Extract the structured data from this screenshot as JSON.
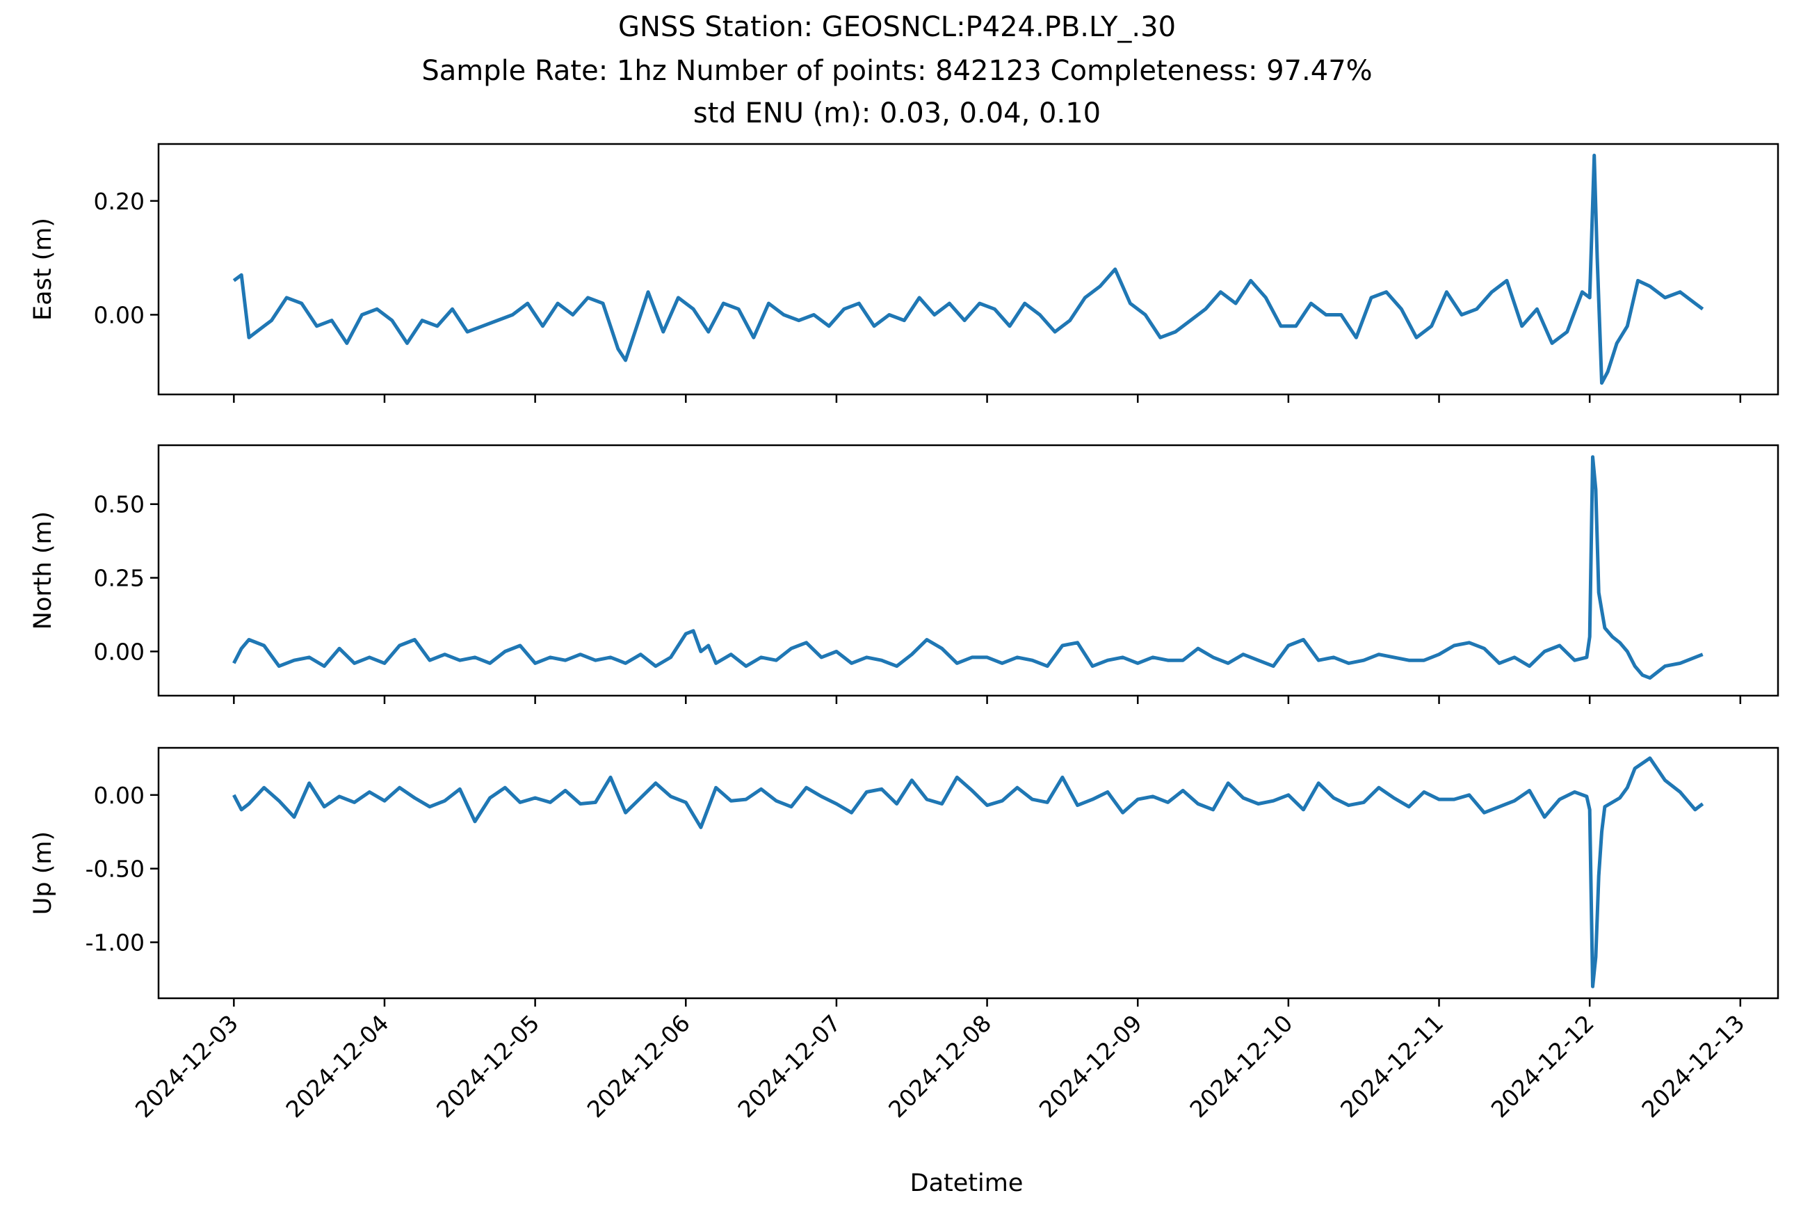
{
  "chart_data": {
    "type": "line",
    "title_lines": [
      "GNSS Station: GEOSNCL:P424.PB.LY_.30",
      "Sample Rate: 1hz   Number of points: 842123    Completeness:  97.47%",
      "std ENU (m):  0.03, 0.04, 0.10"
    ],
    "xlabel": "Datetime",
    "x_ticks": [
      "2024-12-03",
      "2024-12-04",
      "2024-12-05",
      "2024-12-06",
      "2024-12-07",
      "2024-12-08",
      "2024-12-09",
      "2024-12-10",
      "2024-12-11",
      "2024-12-12",
      "2024-12-13"
    ],
    "x_range_days": [
      -0.5,
      10.25
    ],
    "line_color": "#1f77b4",
    "panels": [
      {
        "ylabel": "East (m)",
        "ylim": [
          -0.14,
          0.3
        ],
        "yticks": [
          0.0,
          0.2
        ],
        "ytick_labels": [
          "0.00",
          "0.20"
        ],
        "series": {
          "x_days": [
            0.0,
            0.05,
            0.1,
            0.15,
            0.25,
            0.35,
            0.45,
            0.55,
            0.65,
            0.75,
            0.85,
            0.95,
            1.05,
            1.15,
            1.25,
            1.35,
            1.45,
            1.55,
            1.65,
            1.75,
            1.85,
            1.95,
            2.05,
            2.15,
            2.25,
            2.35,
            2.45,
            2.55,
            2.6,
            2.7,
            2.75,
            2.85,
            2.95,
            3.05,
            3.15,
            3.25,
            3.35,
            3.45,
            3.55,
            3.65,
            3.75,
            3.85,
            3.95,
            4.05,
            4.15,
            4.25,
            4.35,
            4.45,
            4.55,
            4.65,
            4.75,
            4.85,
            4.95,
            5.05,
            5.15,
            5.25,
            5.35,
            5.45,
            5.55,
            5.65,
            5.75,
            5.85,
            5.95,
            6.05,
            6.15,
            6.25,
            6.35,
            6.45,
            6.55,
            6.65,
            6.75,
            6.85,
            6.95,
            7.05,
            7.15,
            7.25,
            7.35,
            7.45,
            7.55,
            7.65,
            7.75,
            7.85,
            7.95,
            8.05,
            8.15,
            8.25,
            8.35,
            8.45,
            8.55,
            8.65,
            8.75,
            8.85,
            8.95,
            9.0,
            9.03,
            9.05,
            9.08,
            9.12,
            9.18,
            9.25,
            9.32,
            9.4,
            9.5,
            9.6,
            9.7,
            9.75
          ],
          "y": [
            0.06,
            0.07,
            -0.04,
            -0.03,
            -0.01,
            0.03,
            0.02,
            -0.02,
            -0.01,
            -0.05,
            0.0,
            0.01,
            -0.01,
            -0.05,
            -0.01,
            -0.02,
            0.01,
            -0.03,
            -0.02,
            -0.01,
            0.0,
            0.02,
            -0.02,
            0.02,
            0.0,
            0.03,
            0.02,
            -0.06,
            -0.08,
            0.0,
            0.04,
            -0.03,
            0.03,
            0.01,
            -0.03,
            0.02,
            0.01,
            -0.04,
            0.02,
            0.0,
            -0.01,
            0.0,
            -0.02,
            0.01,
            0.02,
            -0.02,
            0.0,
            -0.01,
            0.03,
            0.0,
            0.02,
            -0.01,
            0.02,
            0.01,
            -0.02,
            0.02,
            0.0,
            -0.03,
            -0.01,
            0.03,
            0.05,
            0.08,
            0.02,
            0.0,
            -0.04,
            -0.03,
            -0.01,
            0.01,
            0.04,
            0.02,
            0.06,
            0.03,
            -0.02,
            -0.02,
            0.02,
            0.0,
            0.0,
            -0.04,
            0.03,
            0.04,
            0.01,
            -0.04,
            -0.02,
            0.04,
            0.0,
            0.01,
            0.04,
            0.06,
            -0.02,
            0.01,
            -0.05,
            -0.03,
            0.04,
            0.03,
            0.28,
            0.1,
            -0.12,
            -0.1,
            -0.05,
            -0.02,
            0.06,
            0.05,
            0.03,
            0.04,
            0.02,
            0.01
          ]
        }
      },
      {
        "ylabel": "North (m)",
        "ylim": [
          -0.15,
          0.7
        ],
        "yticks": [
          0.0,
          0.25,
          0.5
        ],
        "ytick_labels": [
          "0.00",
          "0.25",
          "0.50"
        ],
        "series": {
          "x_days": [
            0.0,
            0.05,
            0.1,
            0.2,
            0.3,
            0.4,
            0.5,
            0.6,
            0.7,
            0.8,
            0.9,
            1.0,
            1.1,
            1.2,
            1.3,
            1.4,
            1.5,
            1.6,
            1.7,
            1.8,
            1.9,
            2.0,
            2.1,
            2.2,
            2.3,
            2.4,
            2.5,
            2.6,
            2.7,
            2.8,
            2.9,
            3.0,
            3.05,
            3.1,
            3.15,
            3.2,
            3.3,
            3.4,
            3.5,
            3.6,
            3.7,
            3.8,
            3.9,
            4.0,
            4.1,
            4.2,
            4.3,
            4.4,
            4.5,
            4.6,
            4.7,
            4.8,
            4.9,
            5.0,
            5.1,
            5.2,
            5.3,
            5.4,
            5.5,
            5.6,
            5.7,
            5.8,
            5.9,
            6.0,
            6.1,
            6.2,
            6.3,
            6.4,
            6.5,
            6.6,
            6.7,
            6.8,
            6.9,
            7.0,
            7.1,
            7.2,
            7.3,
            7.4,
            7.5,
            7.6,
            7.7,
            7.8,
            7.9,
            8.0,
            8.1,
            8.2,
            8.3,
            8.4,
            8.5,
            8.6,
            8.7,
            8.8,
            8.9,
            8.98,
            9.0,
            9.02,
            9.04,
            9.06,
            9.08,
            9.1,
            9.15,
            9.2,
            9.25,
            9.3,
            9.35,
            9.4,
            9.5,
            9.6,
            9.7,
            9.75
          ],
          "y": [
            -0.04,
            0.01,
            0.04,
            0.02,
            -0.05,
            -0.03,
            -0.02,
            -0.05,
            0.01,
            -0.04,
            -0.02,
            -0.04,
            0.02,
            0.04,
            -0.03,
            -0.01,
            -0.03,
            -0.02,
            -0.04,
            0.0,
            0.02,
            -0.04,
            -0.02,
            -0.03,
            -0.01,
            -0.03,
            -0.02,
            -0.04,
            -0.01,
            -0.05,
            -0.02,
            0.06,
            0.07,
            0.0,
            0.02,
            -0.04,
            -0.01,
            -0.05,
            -0.02,
            -0.03,
            0.01,
            0.03,
            -0.02,
            0.0,
            -0.04,
            -0.02,
            -0.03,
            -0.05,
            -0.01,
            0.04,
            0.01,
            -0.04,
            -0.02,
            -0.02,
            -0.04,
            -0.02,
            -0.03,
            -0.05,
            0.02,
            0.03,
            -0.05,
            -0.03,
            -0.02,
            -0.04,
            -0.02,
            -0.03,
            -0.03,
            0.01,
            -0.02,
            -0.04,
            -0.01,
            -0.03,
            -0.05,
            0.02,
            0.04,
            -0.03,
            -0.02,
            -0.04,
            -0.03,
            -0.01,
            -0.02,
            -0.03,
            -0.03,
            -0.01,
            0.02,
            0.03,
            0.01,
            -0.04,
            -0.02,
            -0.05,
            0.0,
            0.02,
            -0.03,
            -0.02,
            0.05,
            0.66,
            0.55,
            0.2,
            0.14,
            0.08,
            0.05,
            0.03,
            0.0,
            -0.05,
            -0.08,
            -0.09,
            -0.05,
            -0.04,
            -0.02,
            -0.01
          ]
        }
      },
      {
        "ylabel": "Up (m)",
        "ylim": [
          -1.38,
          0.32
        ],
        "yticks": [
          -1.0,
          -0.5,
          0.0
        ],
        "ytick_labels": [
          "-1.00",
          "-0.50",
          "0.00"
        ],
        "series": {
          "x_days": [
            0.0,
            0.05,
            0.1,
            0.2,
            0.3,
            0.4,
            0.5,
            0.6,
            0.7,
            0.8,
            0.9,
            1.0,
            1.1,
            1.2,
            1.3,
            1.4,
            1.5,
            1.6,
            1.7,
            1.8,
            1.9,
            2.0,
            2.1,
            2.2,
            2.3,
            2.4,
            2.5,
            2.6,
            2.7,
            2.8,
            2.9,
            3.0,
            3.1,
            3.2,
            3.3,
            3.4,
            3.5,
            3.6,
            3.7,
            3.8,
            3.9,
            4.0,
            4.1,
            4.2,
            4.3,
            4.4,
            4.5,
            4.6,
            4.7,
            4.8,
            4.9,
            5.0,
            5.1,
            5.2,
            5.3,
            5.4,
            5.5,
            5.6,
            5.7,
            5.8,
            5.9,
            6.0,
            6.1,
            6.2,
            6.3,
            6.4,
            6.5,
            6.6,
            6.7,
            6.8,
            6.9,
            7.0,
            7.1,
            7.2,
            7.3,
            7.4,
            7.5,
            7.6,
            7.7,
            7.8,
            7.9,
            8.0,
            8.1,
            8.2,
            8.3,
            8.4,
            8.5,
            8.6,
            8.7,
            8.8,
            8.9,
            8.98,
            9.0,
            9.02,
            9.04,
            9.06,
            9.08,
            9.1,
            9.15,
            9.2,
            9.25,
            9.3,
            9.4,
            9.5,
            9.6,
            9.7,
            9.75
          ],
          "y": [
            0.0,
            -0.1,
            -0.06,
            0.05,
            -0.04,
            -0.15,
            0.08,
            -0.08,
            -0.01,
            -0.05,
            0.02,
            -0.04,
            0.05,
            -0.02,
            -0.08,
            -0.04,
            0.04,
            -0.18,
            -0.02,
            0.05,
            -0.05,
            -0.02,
            -0.05,
            0.03,
            -0.06,
            -0.05,
            0.12,
            -0.12,
            -0.02,
            0.08,
            -0.01,
            -0.05,
            -0.22,
            0.05,
            -0.04,
            -0.03,
            0.04,
            -0.04,
            -0.08,
            0.05,
            -0.01,
            -0.06,
            -0.12,
            0.02,
            0.04,
            -0.06,
            0.1,
            -0.03,
            -0.06,
            0.12,
            0.03,
            -0.07,
            -0.04,
            0.05,
            -0.03,
            -0.05,
            0.12,
            -0.07,
            -0.03,
            0.02,
            -0.12,
            -0.03,
            -0.01,
            -0.05,
            0.03,
            -0.06,
            -0.1,
            0.08,
            -0.02,
            -0.06,
            -0.04,
            0.0,
            -0.1,
            0.08,
            -0.02,
            -0.07,
            -0.05,
            0.05,
            -0.02,
            -0.08,
            0.02,
            -0.03,
            -0.03,
            0.0,
            -0.12,
            -0.08,
            -0.04,
            0.03,
            -0.15,
            -0.03,
            0.02,
            -0.01,
            -0.1,
            -1.3,
            -1.1,
            -0.55,
            -0.25,
            -0.08,
            -0.05,
            -0.02,
            0.05,
            0.18,
            0.25,
            0.1,
            0.02,
            -0.1,
            -0.06
          ]
        }
      }
    ]
  }
}
